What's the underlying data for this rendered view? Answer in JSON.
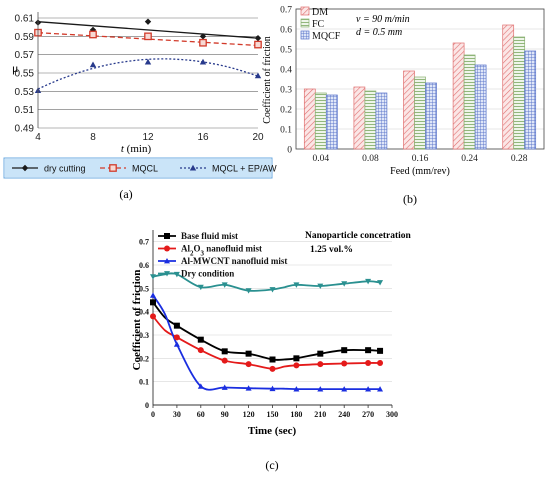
{
  "chart_data": [
    {
      "id": "a",
      "type": "line",
      "panel_label": "(a)",
      "xlabel_italic": "t",
      "xlabel_rest": " (min)",
      "ylabel": "μ",
      "x": [
        4,
        8,
        12,
        16,
        20
      ],
      "xticks": [
        "4",
        "8",
        "12",
        "16",
        "20"
      ],
      "xlim": [
        4,
        20
      ],
      "ylim": [
        0.49,
        0.61
      ],
      "yticks": [
        "0.49",
        "0.51",
        "0.53",
        "0.55",
        "0.57",
        "0.59",
        "0.61"
      ],
      "grid": "horizontal",
      "legend_position": "bottom",
      "series": [
        {
          "name": "dry cutting",
          "color": "#1a1a1a",
          "marker": "diamond",
          "line": "solid",
          "values": [
            0.605,
            0.597,
            0.606,
            0.59,
            0.588
          ],
          "trend": [
            0.606,
            0.588
          ]
        },
        {
          "name": "MQCL",
          "color": "#d23a2a",
          "marker": "square",
          "line": "dashed",
          "values": [
            0.594,
            0.592,
            0.59,
            0.583,
            0.581
          ],
          "trend": [
            0.594,
            0.58
          ]
        },
        {
          "name": "MQCL + EP/AW",
          "color": "#283a8c",
          "marker": "triangle",
          "line": "dotted",
          "values": [
            0.531,
            0.559,
            0.562,
            0.562,
            0.547
          ],
          "trend_curve": true
        }
      ]
    },
    {
      "id": "b",
      "type": "bar",
      "panel_label": "(b)",
      "xlabel": "Feed (mm/rev)",
      "ylabel": "Coefficient of friction",
      "categories": [
        "0.04",
        "0.08",
        "0.16",
        "0.24",
        "0.28"
      ],
      "ylim": [
        0,
        0.7
      ],
      "yticks": [
        "0",
        "0.1",
        "0.2",
        "0.3",
        "0.4",
        "0.5",
        "0.6",
        "0.7"
      ],
      "grid": "horizontal",
      "legend_position": "top-left",
      "annotation_1": "v = 90 m/min",
      "annotation_2": "d = 0.5 mm",
      "series": [
        {
          "name": "DM",
          "color": "#e07070",
          "pattern": "diag",
          "values": [
            0.3,
            0.31,
            0.39,
            0.53,
            0.62
          ]
        },
        {
          "name": "FC",
          "color": "#88b070",
          "pattern": "hatch",
          "values": [
            0.28,
            0.29,
            0.36,
            0.47,
            0.56
          ]
        },
        {
          "name": "MQCF",
          "color": "#5570c8",
          "pattern": "grid",
          "values": [
            0.27,
            0.28,
            0.33,
            0.42,
            0.49
          ]
        }
      ]
    },
    {
      "id": "c",
      "type": "line",
      "panel_label": "(c)",
      "xlabel": "Time (sec)",
      "ylabel": "Coefficient of friction",
      "x": [
        0,
        15,
        30,
        60,
        90,
        120,
        150,
        165,
        180,
        210,
        240,
        270,
        285
      ],
      "xticks": [
        "0",
        "30",
        "60",
        "90",
        "120",
        "150",
        "180",
        "210",
        "240",
        "270",
        "300"
      ],
      "xlim": [
        0,
        300
      ],
      "ylim": [
        0,
        0.75
      ],
      "yticks": [
        "0",
        "0.1",
        "0.2",
        "0.3",
        "0.4",
        "0.5",
        "0.6",
        "0.7"
      ],
      "grid": "horizontal",
      "legend_position": "top-left",
      "annotation_1": "Nanoparticle concetration",
      "annotation_2": "1.25 vol.%",
      "series": [
        {
          "name": "Base fluid mist",
          "color": "#000000",
          "marker": "square",
          "values": [
            0.44,
            0.375,
            0.34,
            0.28,
            0.23,
            0.22,
            0.195,
            0.195,
            0.2,
            0.22,
            0.235,
            0.235,
            0.232
          ]
        },
        {
          "name": "Al2O3 nanofluid mist",
          "name_base": "Al",
          "name_sub1": "2",
          "name_mid": "O",
          "name_sub2": "3",
          "name_tail": " nanofluid mist",
          "color": "#e41a1a",
          "marker": "circle",
          "values": [
            0.38,
            0.32,
            0.29,
            0.235,
            0.19,
            0.175,
            0.155,
            0.165,
            0.17,
            0.175,
            0.178,
            0.18,
            0.18
          ]
        },
        {
          "name": "Al-MWCNT nanofluid mist",
          "color": "#1a2ee0",
          "marker": "triangle",
          "values": [
            0.47,
            0.39,
            0.26,
            0.08,
            0.075,
            0.072,
            0.07,
            0.07,
            0.068,
            0.068,
            0.068,
            0.068,
            0.068
          ]
        },
        {
          "name": "Dry condition",
          "color": "#2a9090",
          "marker": "tri-down",
          "values": [
            0.55,
            0.56,
            0.56,
            0.505,
            0.515,
            0.49,
            0.495,
            0.505,
            0.515,
            0.51,
            0.52,
            0.53,
            0.525
          ]
        }
      ]
    }
  ]
}
